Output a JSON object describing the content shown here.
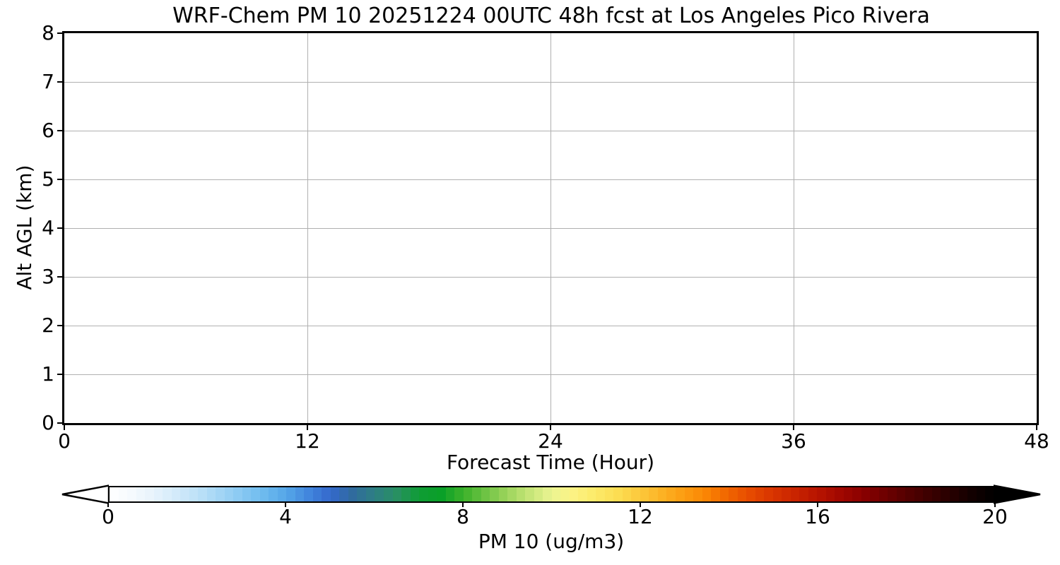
{
  "figure": {
    "background": "#ffffff",
    "spine_color": "#000000"
  },
  "chart_data": {
    "type": "heatmap",
    "title": "WRF-Chem PM 10  20251224 00UTC 48h fcst at Los Angeles Pico Rivera",
    "xlabel": "Forecast Time (Hour)",
    "ylabel": "Alt AGL (km)",
    "xlim": [
      0,
      48
    ],
    "ylim": [
      0,
      8
    ],
    "x_ticks": [
      0,
      12,
      24,
      36,
      48
    ],
    "y_ticks": [
      0,
      1,
      2,
      3,
      4,
      5,
      6,
      7,
      8
    ],
    "grid": true,
    "grid_color": "#b0b0b0",
    "values": [],
    "plot_area_note": "plot area is empty white — no contour fill visible (all PM10 values below lowest color level)",
    "colorbar": {
      "label": "PM 10  (ug/m3)",
      "ticks": [
        0,
        4,
        8,
        12,
        16,
        20
      ],
      "range": [
        0,
        20
      ],
      "extend": "both",
      "under_color": "#ffffff",
      "over_color": "#000000",
      "segments": 100,
      "stops": [
        [
          0,
          "#ffffff"
        ],
        [
          0.5,
          "#f5fafe"
        ],
        [
          1,
          "#e7f3fc"
        ],
        [
          1.5,
          "#d3eafa"
        ],
        [
          2,
          "#bde1f8"
        ],
        [
          2.5,
          "#a3d5f5"
        ],
        [
          3,
          "#87c8f2"
        ],
        [
          3.5,
          "#6dbaee"
        ],
        [
          4,
          "#55a6e8"
        ],
        [
          4.5,
          "#4286dd"
        ],
        [
          5,
          "#3468cc"
        ],
        [
          5.5,
          "#306b9e"
        ],
        [
          6,
          "#2d7f83"
        ],
        [
          6.5,
          "#289061"
        ],
        [
          7,
          "#0f9c35"
        ],
        [
          7.5,
          "#0aa028"
        ],
        [
          8,
          "#3cb22a"
        ],
        [
          8.5,
          "#6ec344"
        ],
        [
          9,
          "#9dd55c"
        ],
        [
          9.5,
          "#c6e578"
        ],
        [
          10,
          "#ecf492"
        ],
        [
          10.5,
          "#fcf283"
        ],
        [
          11,
          "#fcea68"
        ],
        [
          11.5,
          "#fcdd52"
        ],
        [
          12,
          "#fcc83c"
        ],
        [
          12.5,
          "#fcb224"
        ],
        [
          13,
          "#fc9c10"
        ],
        [
          13.5,
          "#fa8404"
        ],
        [
          14,
          "#f06400"
        ],
        [
          14.5,
          "#e64a00"
        ],
        [
          15,
          "#d83400"
        ],
        [
          15.5,
          "#c92400"
        ],
        [
          16,
          "#b81400"
        ],
        [
          16.5,
          "#a20800"
        ],
        [
          17,
          "#8c0000"
        ],
        [
          17.5,
          "#700000"
        ],
        [
          18,
          "#560000"
        ],
        [
          18.5,
          "#3e0000"
        ],
        [
          19,
          "#280000"
        ],
        [
          19.5,
          "#120000"
        ],
        [
          20,
          "#000000"
        ]
      ]
    }
  }
}
